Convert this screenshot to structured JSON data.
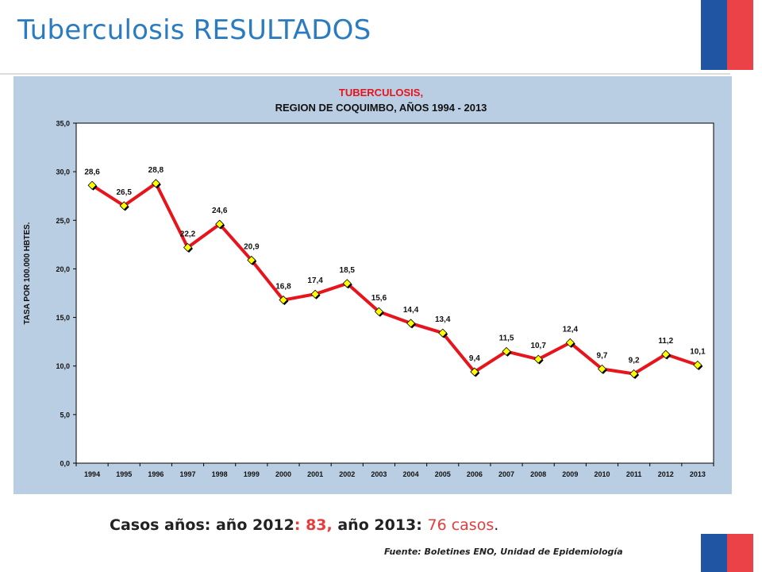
{
  "slide": {
    "title": "Tuberculosis RESULTADOS",
    "title_color": "#2a7bbf",
    "flag_colors": {
      "blue": "#1f55a3",
      "red": "#ea4246"
    }
  },
  "cases": {
    "text_1": "Casos años: año 2012",
    "text_2": ": 83,",
    "text_3": " año 2013: ",
    "text_4": "76 casos",
    "text_5": ".",
    "highlight_color": "#e63c3c"
  },
  "source": {
    "text": "Fuente: Boletines ENO, Unidad de Epidemiología"
  },
  "chart_data": {
    "type": "line",
    "title_line1": "TUBERCULOSIS,",
    "title_line2": "REGION DE COQUIMBO, AÑOS 1994 - 2013",
    "xlabel": "",
    "ylabel": "TASA POR 100.000 HBTES.",
    "ylim": [
      0,
      35
    ],
    "yticks": [
      "0,0",
      "5,0",
      "10,0",
      "15,0",
      "20,0",
      "25,0",
      "30,0",
      "35,0"
    ],
    "categories": [
      "1994",
      "1995",
      "1996",
      "1997",
      "1998",
      "1999",
      "2000",
      "2001",
      "2002",
      "2003",
      "2004",
      "2005",
      "2006",
      "2007",
      "2008",
      "2009",
      "2010",
      "2011",
      "2012",
      "2013"
    ],
    "series": [
      {
        "values": [
          28.6,
          26.5,
          28.8,
          22.2,
          24.6,
          20.9,
          16.8,
          17.4,
          18.5,
          15.6,
          14.4,
          13.4,
          9.4,
          11.5,
          10.7,
          12.4,
          9.7,
          9.2,
          11.2,
          10.1
        ],
        "labels": [
          "28,6",
          "26,5",
          "28,8",
          "22,2",
          "24,6",
          "20,9",
          "16,8",
          "17,4",
          "18,5",
          "15,6",
          "14,4",
          "13,4",
          "9,4",
          "11,5",
          "10,7",
          "12,4",
          "9,7",
          "9,2",
          "11,2",
          "10,1"
        ]
      }
    ],
    "grid": false,
    "legend": "none",
    "colors": {
      "panel": "#b9cde3",
      "plot": "#ffffff",
      "line": "#e8141b",
      "marker": "#ffff00",
      "title": "#e8141b"
    }
  }
}
